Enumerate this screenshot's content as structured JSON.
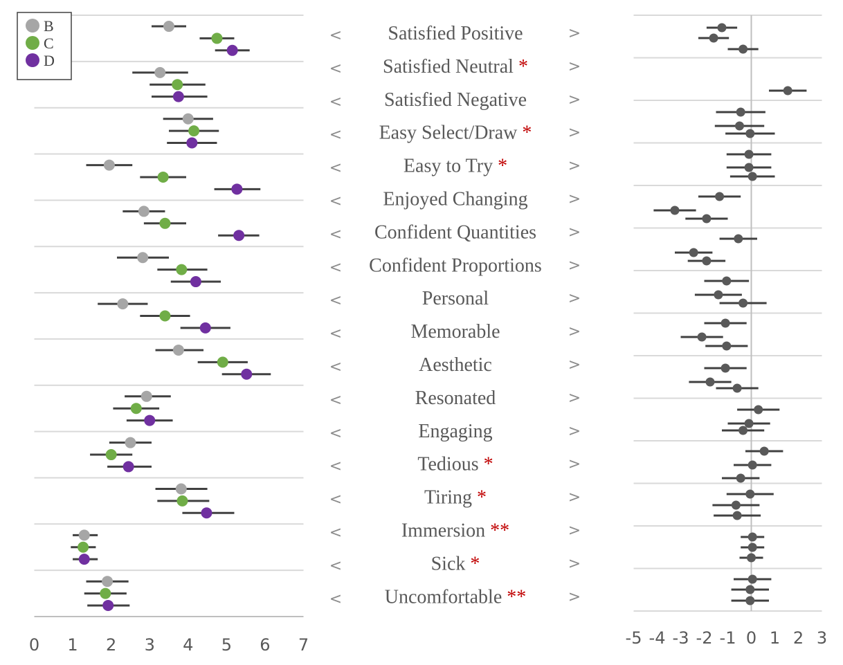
{
  "chart_data": [
    {
      "type": "scatter",
      "x_axis": {
        "ticks": [
          0,
          1,
          2,
          3,
          4,
          5,
          6,
          7
        ],
        "range": [
          0,
          7
        ]
      },
      "legend": {
        "placement": "top-left",
        "entries": [
          "B",
          "C",
          "D"
        ]
      },
      "series": [
        {
          "name": "B",
          "color": "#a6a6a6",
          "values": [
            3.5,
            3.27,
            4.0,
            1.95,
            2.85,
            2.82,
            2.3,
            3.75,
            2.92,
            2.5,
            3.82,
            1.3,
            1.9
          ],
          "ci": [
            [
              3.05,
              3.95
            ],
            [
              2.55,
              4.0
            ],
            [
              3.35,
              4.65
            ],
            [
              1.35,
              2.55
            ],
            [
              2.3,
              3.4
            ],
            [
              2.15,
              3.5
            ],
            [
              1.65,
              2.95
            ],
            [
              3.15,
              4.4
            ],
            [
              2.35,
              3.55
            ],
            [
              1.95,
              3.05
            ],
            [
              3.15,
              4.5
            ],
            [
              1.0,
              1.65
            ],
            [
              1.35,
              2.45
            ]
          ]
        },
        {
          "name": "C",
          "color": "#70ad47",
          "values": [
            4.75,
            3.72,
            4.15,
            3.35,
            3.4,
            3.83,
            3.4,
            4.9,
            2.65,
            2.0,
            3.85,
            1.27,
            1.85
          ],
          "ci": [
            [
              4.3,
              5.2
            ],
            [
              3.0,
              4.45
            ],
            [
              3.5,
              4.8
            ],
            [
              2.75,
              3.95
            ],
            [
              2.85,
              3.95
            ],
            [
              3.2,
              4.5
            ],
            [
              2.75,
              4.05
            ],
            [
              4.25,
              5.55
            ],
            [
              2.05,
              3.25
            ],
            [
              1.45,
              2.55
            ],
            [
              3.2,
              4.55
            ],
            [
              0.95,
              1.6
            ],
            [
              1.3,
              2.4
            ]
          ]
        },
        {
          "name": "D",
          "color": "#7030a0",
          "values": [
            5.15,
            3.75,
            4.1,
            5.27,
            5.32,
            4.2,
            4.45,
            5.52,
            3.0,
            2.45,
            4.48,
            1.3,
            1.92
          ],
          "ci": [
            [
              4.7,
              5.6
            ],
            [
              3.05,
              4.5
            ],
            [
              3.45,
              4.75
            ],
            [
              4.68,
              5.88
            ],
            [
              4.78,
              5.85
            ],
            [
              3.55,
              4.85
            ],
            [
              3.8,
              5.1
            ],
            [
              4.88,
              6.15
            ],
            [
              2.4,
              3.6
            ],
            [
              1.9,
              3.05
            ],
            [
              3.85,
              5.2
            ],
            [
              1.0,
              1.65
            ],
            [
              1.38,
              2.48
            ]
          ]
        }
      ]
    },
    {
      "type": "scatter",
      "x_axis": {
        "ticks": [
          -5,
          -4,
          -3,
          -2,
          -1,
          0,
          1,
          2,
          3
        ],
        "range": [
          -5,
          3
        ]
      },
      "color": "#595959",
      "rows": [
        {
          "label": "Satisfied Positive",
          "stars": "",
          "values": [
            -1.25,
            -1.6,
            -0.35
          ],
          "ci": [
            [
              -1.9,
              -0.6
            ],
            [
              -2.25,
              -0.95
            ],
            [
              -1.0,
              0.3
            ]
          ]
        },
        {
          "label": "Satisfied Neutral",
          "stars": "*",
          "values": [
            1.55
          ],
          "ci": [
            [
              0.75,
              2.35
            ]
          ]
        },
        {
          "label": "Satisfied Negative",
          "stars": "",
          "values": [
            -0.45,
            -0.5,
            -0.05
          ],
          "ci": [
            [
              -1.5,
              0.6
            ],
            [
              -1.55,
              0.55
            ],
            [
              -1.1,
              1.0
            ]
          ]
        },
        {
          "label": "Easy Select/Draw",
          "stars": "*",
          "values": [
            -0.1,
            -0.1,
            0.05
          ],
          "ci": [
            [
              -1.05,
              0.85
            ],
            [
              -1.05,
              0.85
            ],
            [
              -0.9,
              1.0
            ]
          ]
        },
        {
          "label": "Easy  to Try",
          "stars": "*",
          "values": [
            -1.35,
            -3.25,
            -1.9
          ],
          "ci": [
            [
              -2.25,
              -0.45
            ],
            [
              -4.15,
              -2.35
            ],
            [
              -2.8,
              -1.0
            ]
          ]
        },
        {
          "label": "Enjoyed Changing",
          "stars": "",
          "values": [
            -0.55
          ],
          "ci": [
            [
              -1.35,
              0.25
            ]
          ]
        },
        {
          "label": "Confident Quantities",
          "stars": "",
          "values": [
            -2.45,
            -1.9
          ],
          "ci": [
            [
              -3.25,
              -1.65
            ],
            [
              -2.7,
              -1.1
            ]
          ]
        },
        {
          "label": "Confident Proportions",
          "stars": "",
          "values": [
            -1.05,
            -1.4,
            -0.35
          ],
          "ci": [
            [
              -2.0,
              -0.1
            ],
            [
              -2.4,
              -0.4
            ],
            [
              -1.35,
              0.65
            ]
          ]
        },
        {
          "label": "Personal",
          "stars": "",
          "values": [
            -1.1,
            -2.1,
            -1.05
          ],
          "ci": [
            [
              -2.0,
              -0.2
            ],
            [
              -3.0,
              -1.2
            ],
            [
              -1.95,
              -0.15
            ]
          ]
        },
        {
          "label": "Memorable",
          "stars": "",
          "values": [
            -1.1,
            -1.75,
            -0.6
          ],
          "ci": [
            [
              -2.0,
              -0.2
            ],
            [
              -2.65,
              -0.85
            ],
            [
              -1.5,
              0.3
            ]
          ]
        },
        {
          "label": "Aesthetic",
          "stars": "",
          "values": [
            0.3,
            -0.1,
            -0.35
          ],
          "ci": [
            [
              -0.6,
              1.2
            ],
            [
              -1.0,
              0.8
            ],
            [
              -1.25,
              0.55
            ]
          ]
        },
        {
          "label": "Resonated",
          "stars": "",
          "values": [
            0.55,
            0.05,
            -0.45
          ],
          "ci": [
            [
              -0.25,
              1.35
            ],
            [
              -0.75,
              0.85
            ],
            [
              -1.25,
              0.35
            ]
          ]
        },
        {
          "label": "Engaging",
          "stars": "",
          "values": [
            -0.05,
            -0.65,
            -0.6
          ],
          "ci": [
            [
              -1.05,
              0.95
            ],
            [
              -1.65,
              0.35
            ],
            [
              -1.6,
              0.4
            ]
          ]
        },
        {
          "label": "Tedious",
          "stars": "*",
          "values": [
            0.05,
            0.05,
            0.0
          ],
          "ci": [
            [
              -0.45,
              0.55
            ],
            [
              -0.45,
              0.55
            ],
            [
              -0.5,
              0.5
            ]
          ]
        },
        {
          "label": "Tiring",
          "stars": "*",
          "values": [
            0.0,
            -0.05,
            -0.05
          ],
          "ci": [
            [
              -0.85,
              0.85
            ],
            [
              -0.85,
              0.75
            ],
            [
              -0.85,
              0.75
            ]
          ]
        },
        {
          "label": "Immersion",
          "stars": "**",
          "values": [],
          "ci": []
        },
        {
          "label": "Sick",
          "stars": "*",
          "values": [],
          "ci": []
        },
        {
          "label": "Uncomfortable",
          "stars": "**",
          "values": [],
          "ci": []
        }
      ]
    }
  ],
  "arrows": {
    "left": "<",
    "right": ">"
  }
}
